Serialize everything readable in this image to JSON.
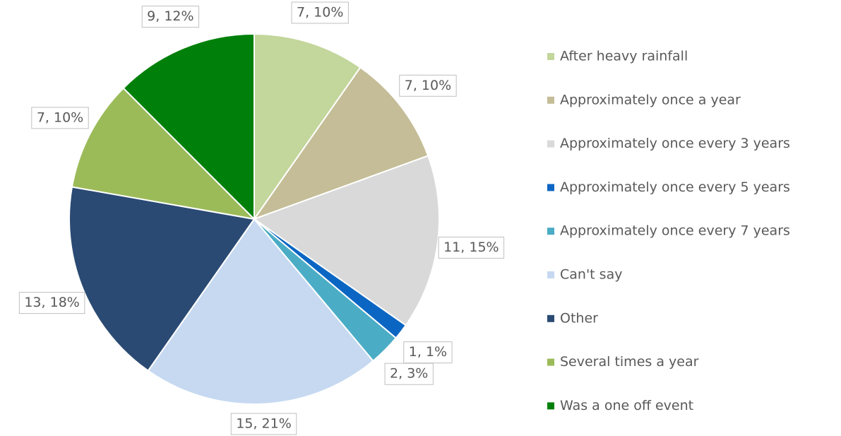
{
  "chart_data": {
    "type": "pie",
    "categories": [
      "After heavy rainfall",
      "Approximately once a year",
      "Approximately once every 3 years",
      "Approximately once every 5 years",
      "Approximately once every 7 years",
      "Can't say",
      "Other",
      "Several times a year",
      "Was a one off event"
    ],
    "values": [
      7,
      7,
      11,
      1,
      2,
      15,
      13,
      7,
      9
    ],
    "value_labels": [
      "7, 10%",
      "7, 10%",
      "11, 15%",
      "1, 1%",
      "2, 3%",
      "15, 21%",
      "13, 18%",
      "7, 10%",
      "9, 12%"
    ],
    "colors": [
      "#c3d69b",
      "#c4bd97",
      "#d9d9d9",
      "#0b66c3",
      "#4bacc6",
      "#c6d9f1",
      "#2a4a73",
      "#9bbb59",
      "#00800a"
    ],
    "legend": "right"
  }
}
